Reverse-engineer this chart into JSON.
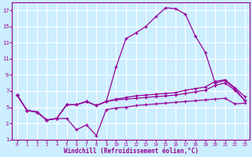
{
  "background_color": "#cceeff",
  "grid_color": "#ffffff",
  "line_color": "#990099",
  "xlabel": "Windchill (Refroidissement éolien,°C)",
  "xlim": [
    -0.5,
    23.5
  ],
  "ylim": [
    1,
    18
  ],
  "yticks": [
    1,
    3,
    5,
    7,
    9,
    11,
    13,
    15,
    17
  ],
  "xticks": [
    0,
    1,
    2,
    3,
    4,
    5,
    6,
    7,
    8,
    9,
    10,
    11,
    12,
    13,
    14,
    15,
    16,
    17,
    18,
    19,
    20,
    21,
    22,
    23
  ],
  "line1_main": [
    6.5,
    4.6,
    4.4,
    3.4,
    3.6,
    5.3,
    5.3,
    5.7,
    5.2,
    5.7,
    10.0,
    13.5,
    14.2,
    15.0,
    16.2,
    17.3,
    17.2,
    16.5,
    13.8,
    11.8,
    8.0,
    8.3,
    7.3,
    5.8
  ],
  "line2_upper": [
    6.5,
    4.6,
    4.4,
    3.4,
    3.6,
    5.3,
    5.3,
    5.7,
    5.2,
    5.7,
    6.0,
    6.2,
    6.4,
    6.5,
    6.6,
    6.7,
    6.8,
    7.1,
    7.3,
    7.5,
    8.2,
    8.4,
    7.4,
    6.3
  ],
  "line3_mid": [
    6.5,
    4.6,
    4.4,
    3.4,
    3.6,
    5.3,
    5.3,
    5.7,
    5.2,
    5.7,
    5.9,
    6.0,
    6.1,
    6.2,
    6.3,
    6.4,
    6.5,
    6.7,
    6.9,
    7.1,
    7.7,
    8.0,
    7.1,
    5.8
  ],
  "line4_lower": [
    6.5,
    4.6,
    4.4,
    3.4,
    3.6,
    3.6,
    2.2,
    2.8,
    1.5,
    4.7,
    4.9,
    5.0,
    5.2,
    5.3,
    5.4,
    5.5,
    5.6,
    5.7,
    5.8,
    5.9,
    6.0,
    6.1,
    5.4,
    5.5
  ]
}
